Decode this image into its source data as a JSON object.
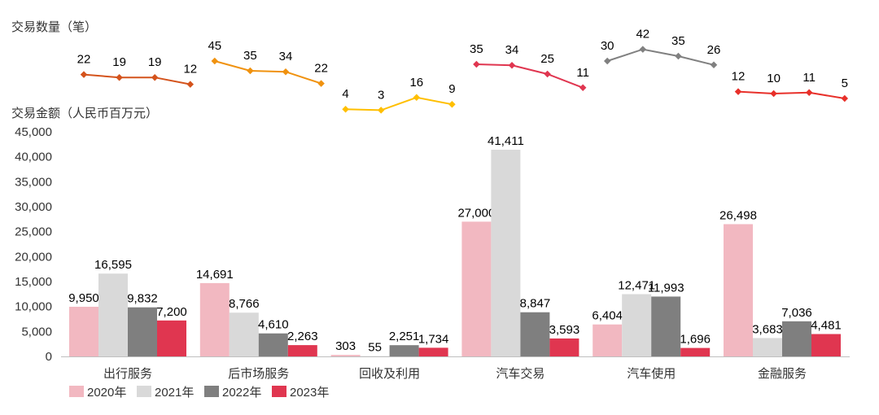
{
  "chart_data": [
    {
      "type": "line",
      "title": "交易数量（笔）",
      "categories": [
        "2020年",
        "2021年",
        "2022年",
        "2023年"
      ],
      "groups": [
        {
          "name": "出行服务",
          "values": [
            22,
            19,
            19,
            12
          ],
          "color": "#d4531c"
        },
        {
          "name": "后市场服务",
          "values": [
            45,
            35,
            34,
            22
          ],
          "color": "#f0920f"
        },
        {
          "name": "回收及利用",
          "values": [
            4,
            3,
            16,
            9
          ],
          "color": "#ffbf00"
        },
        {
          "name": "汽车交易",
          "values": [
            35,
            34,
            25,
            11
          ],
          "color": "#e03650"
        },
        {
          "name": "汽车使用",
          "values": [
            30,
            42,
            35,
            26
          ],
          "color": "#808080"
        },
        {
          "name": "金融服务",
          "values": [
            12,
            10,
            11,
            5
          ],
          "color": "#e8302a"
        }
      ]
    },
    {
      "type": "bar",
      "title": "交易金额（人民币百万元）",
      "categories": [
        "出行服务",
        "后市场服务",
        "回收及利用",
        "汽车交易",
        "汽车使用",
        "金融服务"
      ],
      "series": [
        {
          "name": "2020年",
          "values": [
            9950,
            14691,
            303,
            27000,
            6404,
            26498
          ],
          "labels": [
            "9,950",
            "14,691",
            "303",
            "27,000",
            "6,404",
            "26,498"
          ],
          "color": "#f2b8c1"
        },
        {
          "name": "2021年",
          "values": [
            16595,
            8766,
            55,
            41411,
            12471,
            3683
          ],
          "labels": [
            "16,595",
            "8,766",
            "55",
            "41,411",
            "12,471",
            "3,683"
          ],
          "color": "#d9d9d9"
        },
        {
          "name": "2022年",
          "values": [
            9832,
            4610,
            2251,
            8847,
            11993,
            7036
          ],
          "labels": [
            "9,832",
            "4,610",
            "2,251",
            "8,847",
            "11,993",
            "7,036"
          ],
          "color": "#7f7f7f"
        },
        {
          "name": "2023年",
          "values": [
            7200,
            2263,
            1734,
            3593,
            1696,
            4481
          ],
          "labels": [
            "7,200",
            "2,263",
            "1,734",
            "3,593",
            "1,696",
            "4,481"
          ],
          "color": "#e03650"
        }
      ],
      "ylim": [
        0,
        45000
      ],
      "yticks": [
        0,
        5000,
        10000,
        15000,
        20000,
        25000,
        30000,
        35000,
        40000,
        45000
      ],
      "ytick_labels": [
        "0",
        "5,000",
        "10,000",
        "15,000",
        "20,000",
        "25,000",
        "30,000",
        "35,000",
        "40,000",
        "45,000"
      ],
      "grid": false,
      "legend": "bottom-left"
    }
  ]
}
